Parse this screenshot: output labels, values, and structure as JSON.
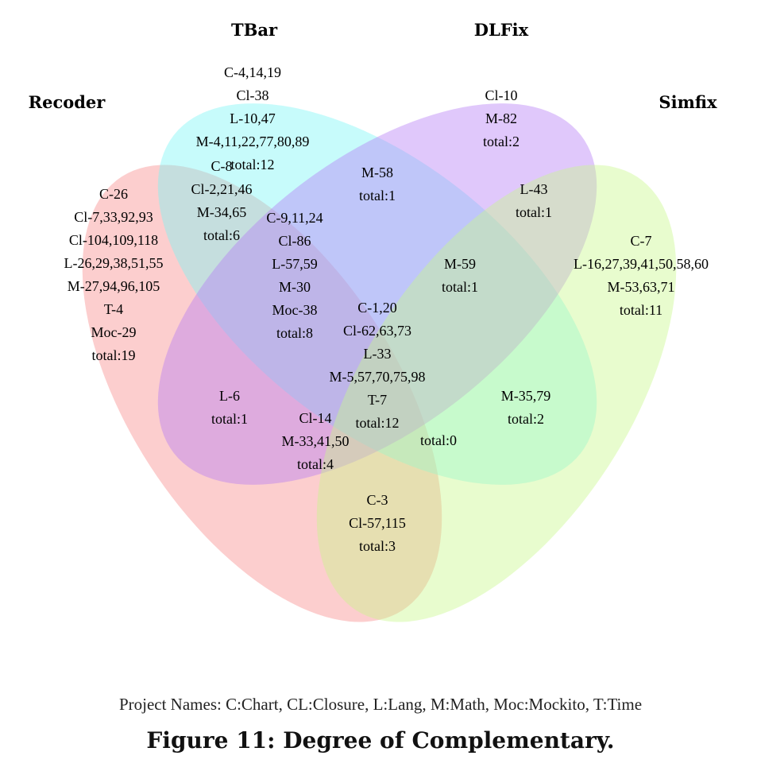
{
  "sets": [
    {
      "name": "Recoder",
      "color": "#f98b8b"
    },
    {
      "name": "TBar",
      "color": "#7af5f5"
    },
    {
      "name": "DLFix",
      "color": "#b47cf5"
    },
    {
      "name": "Simfix",
      "color": "#c7f98b"
    }
  ],
  "regions": [
    {
      "id": "recoder-only",
      "sets": [
        "Recoder"
      ],
      "lines": [
        "C-26",
        "Cl-7,33,92,93",
        "Cl-104,109,118",
        "L-26,29,38,51,55",
        "M-27,94,96,105",
        "T-4",
        "Moc-29",
        "total:19"
      ]
    },
    {
      "id": "tbar-only",
      "sets": [
        "TBar"
      ],
      "lines": [
        "C-4,14,19",
        "Cl-38",
        "L-10,47",
        "M-4,11,22,77,80,89",
        "total:12"
      ]
    },
    {
      "id": "dlfix-only",
      "sets": [
        "DLFix"
      ],
      "lines": [
        "Cl-10",
        "M-82",
        "total:2"
      ]
    },
    {
      "id": "simfix-only",
      "sets": [
        "Simfix"
      ],
      "lines": [
        "C-7",
        "L-16,27,39,41,50,58,60",
        "M-53,63,71",
        "total:11"
      ]
    },
    {
      "id": "recoder-tbar",
      "sets": [
        "Recoder",
        "TBar"
      ],
      "lines": [
        "C-8",
        "Cl-2,21,46",
        "M-34,65",
        "total:6"
      ]
    },
    {
      "id": "tbar-dlfix",
      "sets": [
        "TBar",
        "DLFix"
      ],
      "lines": [
        "M-58",
        "total:1"
      ]
    },
    {
      "id": "dlfix-simfix",
      "sets": [
        "DLFix",
        "Simfix"
      ],
      "lines": [
        "L-43",
        "total:1"
      ]
    },
    {
      "id": "recoder-tbar-dlfix",
      "sets": [
        "Recoder",
        "TBar",
        "DLFix"
      ],
      "lines": [
        "C-9,11,24",
        "Cl-86",
        "L-57,59",
        "M-30",
        "Moc-38",
        "total:8"
      ]
    },
    {
      "id": "tbar-dlfix-simfix",
      "sets": [
        "TBar",
        "DLFix",
        "Simfix"
      ],
      "lines": [
        "M-59",
        "total:1"
      ]
    },
    {
      "id": "recoder-dlfix",
      "sets": [
        "Recoder",
        "DLFix"
      ],
      "lines": [
        "L-6",
        "total:1"
      ]
    },
    {
      "id": "all-four",
      "sets": [
        "Recoder",
        "TBar",
        "DLFix",
        "Simfix"
      ],
      "lines": [
        "C-1,20",
        "Cl-62,63,73",
        "L-33",
        "M-5,57,70,75,98",
        "T-7",
        "total:12"
      ]
    },
    {
      "id": "tbar-simfix",
      "sets": [
        "TBar",
        "Simfix"
      ],
      "lines": [
        "M-35,79",
        "total:2"
      ]
    },
    {
      "id": "recoder-dlfix-simfix",
      "sets": [
        "Recoder",
        "DLFix",
        "Simfix"
      ],
      "lines": [
        "Cl-14",
        "M-33,41,50",
        "total:4"
      ]
    },
    {
      "id": "recoder-tbar-simfix",
      "sets": [
        "Recoder",
        "TBar",
        "Simfix"
      ],
      "lines": [
        "total:0"
      ]
    },
    {
      "id": "recoder-simfix",
      "sets": [
        "Recoder",
        "Simfix"
      ],
      "lines": [
        "C-3",
        "Cl-57,115",
        "total:3"
      ]
    }
  ],
  "legend": "Project Names: C:Chart, CL:Closure, L:Lang, M:Math, Moc:Mockito, T:Time",
  "caption": "Figure 11: Degree of Complementary."
}
